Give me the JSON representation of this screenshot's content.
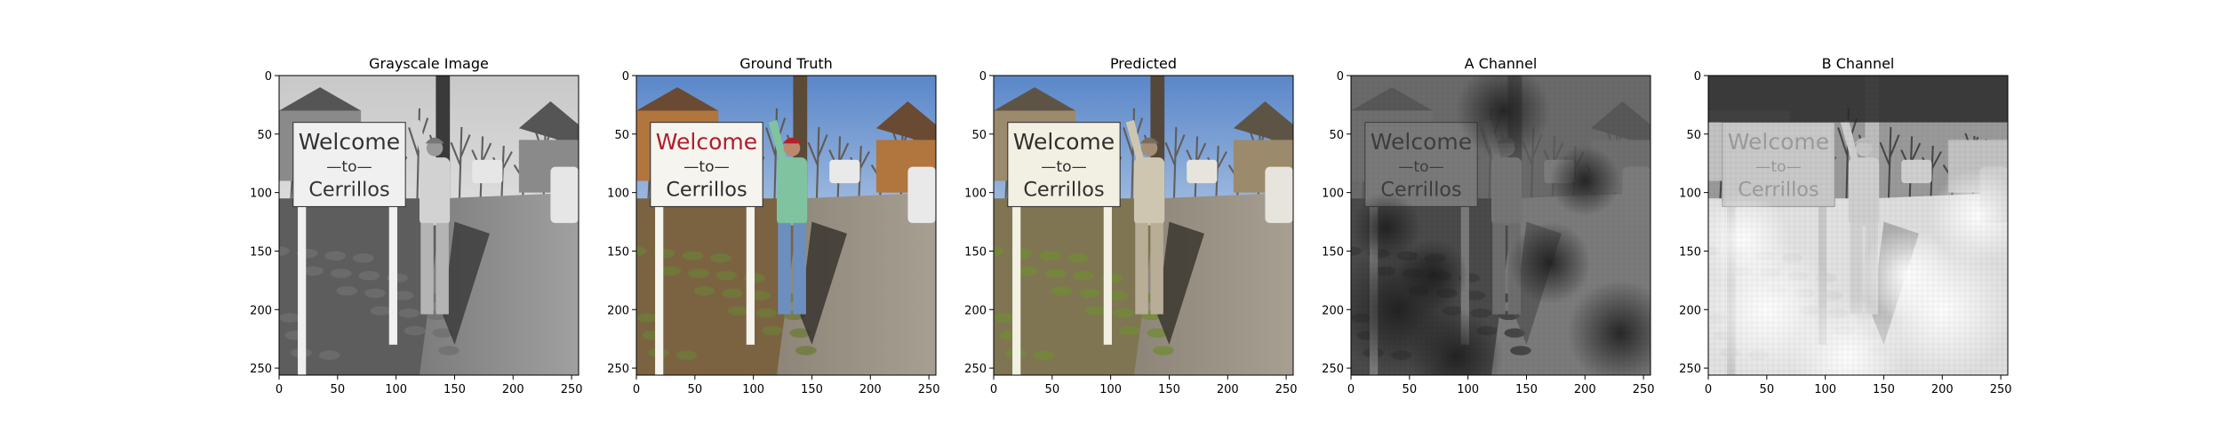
{
  "figure": {
    "panels": [
      {
        "title": "Grayscale Image",
        "mode": "gray"
      },
      {
        "title": "Ground Truth",
        "mode": "color"
      },
      {
        "title": "Predicted",
        "mode": "pred"
      },
      {
        "title": "A Channel",
        "mode": "a"
      },
      {
        "title": "B Channel",
        "mode": "b"
      }
    ],
    "x_ticks": [
      "0",
      "50",
      "100",
      "150",
      "200",
      "250"
    ],
    "y_ticks": [
      "0",
      "50",
      "100",
      "150",
      "200",
      "250"
    ],
    "image_range": [
      0,
      256
    ],
    "sign_text": {
      "line1": "Welcome",
      "line2": "—to—",
      "line3": "Cerrillos"
    }
  }
}
